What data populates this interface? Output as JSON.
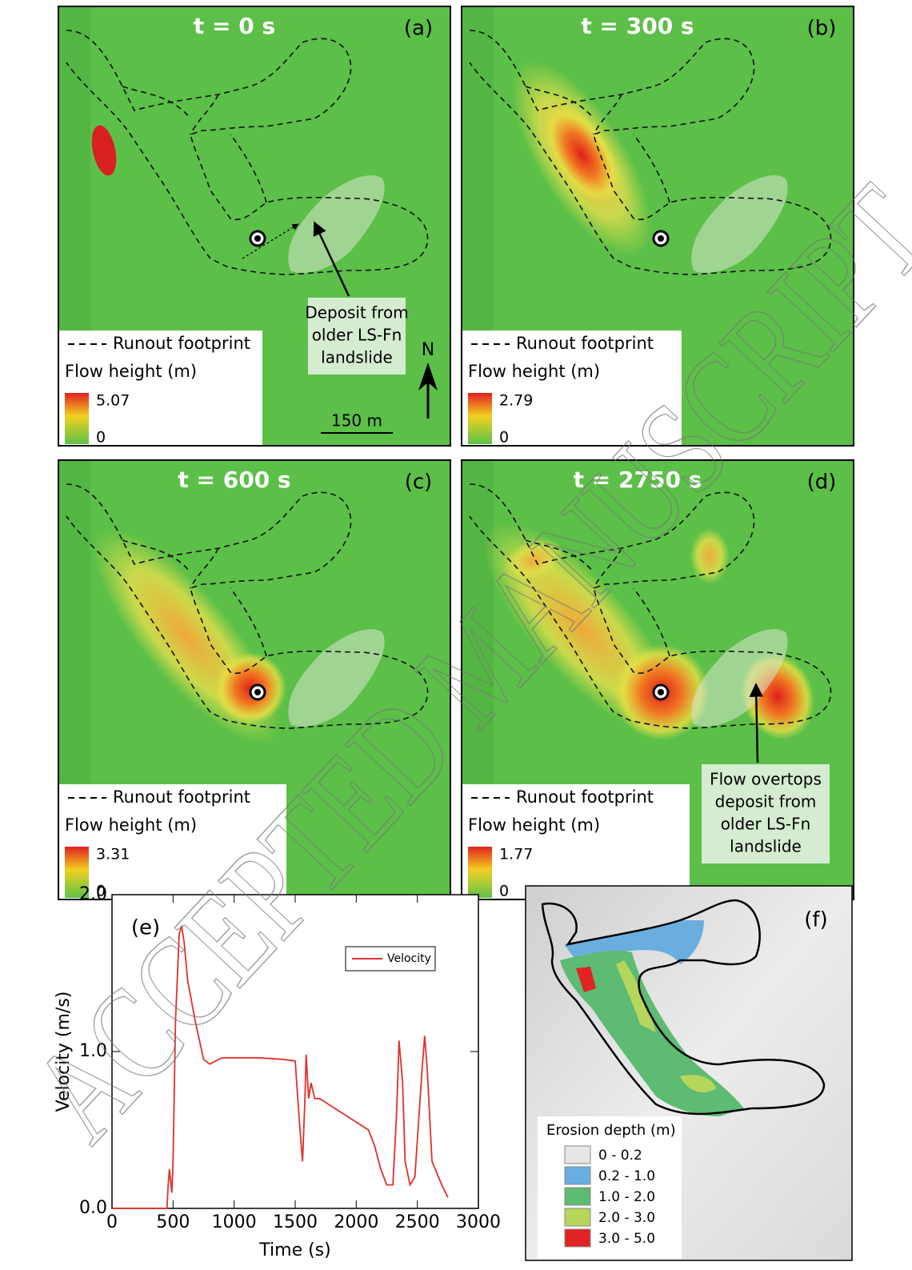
{
  "panels": [
    {
      "label": "(a)",
      "time": "t = 0 s",
      "legend": {
        "footprint": "Runout footprint",
        "title": "Flow height (m)",
        "max": 5.07,
        "min": 0
      },
      "annotation": [
        "Deposit from",
        "older LS-Fn",
        "landslide"
      ]
    },
    {
      "label": "(b)",
      "time": "t = 300 s",
      "legend": {
        "footprint": "Runout footprint",
        "title": "Flow height (m)",
        "max": 2.79,
        "min": 0
      }
    },
    {
      "label": "(c)",
      "time": "t = 600 s",
      "legend": {
        "footprint": "Runout footprint",
        "title": "Flow height (m)",
        "max": 3.31,
        "min": 0
      }
    },
    {
      "label": "(d)",
      "time": "t = 2750 s",
      "legend": {
        "footprint": "Runout footprint",
        "title": "Flow height (m)",
        "max": 1.77,
        "min": 0
      },
      "annotation": [
        "Flow overtops",
        "deposit from",
        "older LS-Fn",
        "landslide"
      ]
    }
  ],
  "north": "N",
  "scale": "150 m",
  "chart_data": {
    "type": "line",
    "label": "(e)",
    "xlabel": "Time (s)",
    "ylabel": "Velocity (m/s)",
    "x": [
      0,
      450,
      460,
      470,
      490,
      500,
      520,
      550,
      570,
      590,
      620,
      680,
      750,
      800,
      900,
      1000,
      1200,
      1400,
      1500,
      1530,
      1550,
      1560,
      1580,
      1590,
      1610,
      1630,
      1660,
      1700,
      1800,
      1900,
      2000,
      2100,
      2150,
      2200,
      2250,
      2300,
      2330,
      2350,
      2380,
      2400,
      2440,
      2480,
      2540,
      2560,
      2580,
      2620,
      2700,
      2750
    ],
    "series": [
      {
        "name": "Velocity",
        "color": "#e0302a",
        "values": [
          0,
          0,
          0.15,
          0.25,
          0.1,
          0.3,
          1.2,
          1.75,
          1.8,
          1.7,
          1.45,
          1.2,
          0.95,
          0.92,
          0.96,
          0.96,
          0.96,
          0.95,
          0.94,
          0.6,
          0.4,
          0.3,
          0.7,
          0.98,
          0.7,
          0.8,
          0.7,
          0.7,
          0.65,
          0.6,
          0.55,
          0.5,
          0.4,
          0.25,
          0.15,
          0.15,
          0.6,
          1.07,
          0.8,
          0.3,
          0.15,
          0.2,
          0.9,
          1.1,
          0.9,
          0.3,
          0.15,
          0.07
        ]
      }
    ],
    "xlim": [
      0,
      3000
    ],
    "xticks": [
      0,
      500,
      1000,
      1500,
      2000,
      2500,
      3000
    ],
    "ylim": [
      0,
      2
    ],
    "yticks": [
      {
        "value": 0,
        "label": "0.0"
      },
      {
        "value": 1,
        "label": "1.0"
      },
      {
        "value": 2,
        "label": "2.0"
      }
    ]
  },
  "erosion": {
    "label": "(f)",
    "title": "Erosion depth (m)",
    "classes": [
      {
        "label": "0 - 0.2",
        "color": "#e6e6e6"
      },
      {
        "label": "0.2 - 1.0",
        "color": "#6aaee0"
      },
      {
        "label": "1.0 - 2.0",
        "color": "#5dbb73"
      },
      {
        "label": "2.0 - 3.0",
        "color": "#b5d65a"
      },
      {
        "label": "3.0 - 5.0",
        "color": "#e02424"
      }
    ]
  },
  "watermark": "ACCEPTED MANUSCRIPT"
}
